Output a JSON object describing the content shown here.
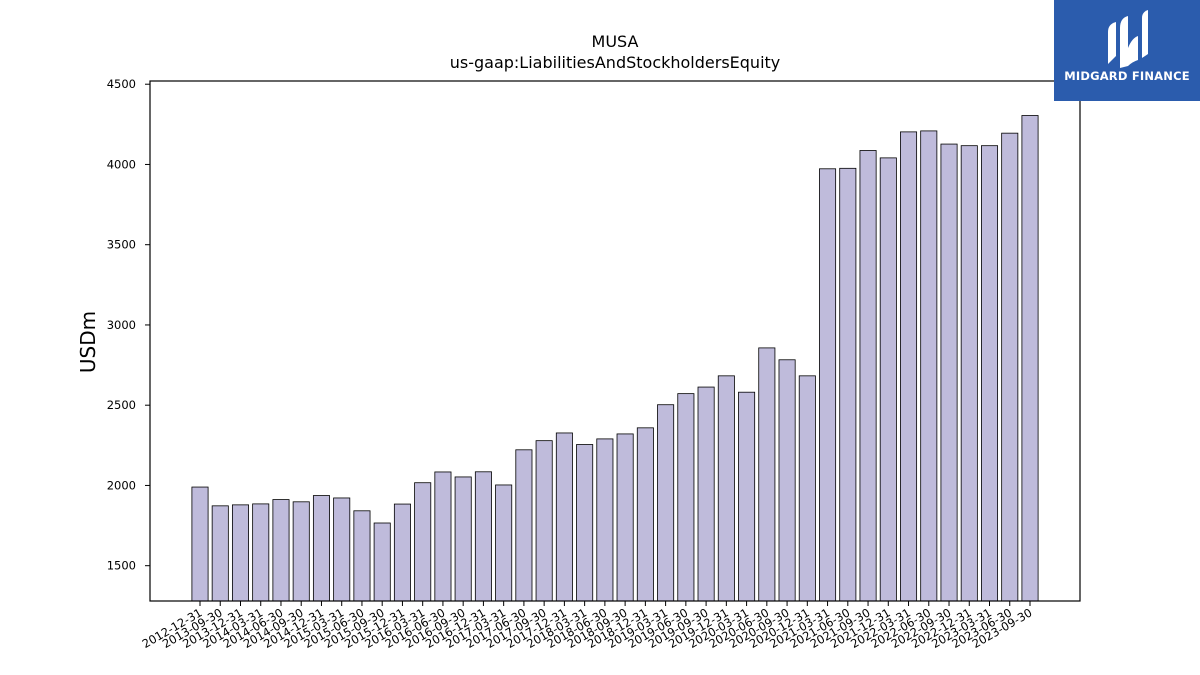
{
  "chart_data": {
    "type": "bar",
    "title": "MUSA",
    "subtitle": "us-gaap:LiabilitiesAndStockholdersEquity",
    "ylabel": "USDm",
    "xlabel": "",
    "ylim": [
      1280,
      4520
    ],
    "yticks": [
      1500,
      2000,
      2500,
      3000,
      3500,
      4000,
      4500
    ],
    "bar_color": "#bfbbdb",
    "bar_edge_color": "#000000",
    "categories": [
      "2012-12-31",
      "2013-09-30",
      "2013-12-31",
      "2014-03-31",
      "2014-06-30",
      "2014-09-30",
      "2014-12-31",
      "2015-03-31",
      "2015-06-30",
      "2015-09-30",
      "2015-12-31",
      "2016-03-31",
      "2016-06-30",
      "2016-09-30",
      "2016-12-31",
      "2017-03-31",
      "2017-06-30",
      "2017-09-30",
      "2017-12-31",
      "2018-03-31",
      "2018-06-30",
      "2018-09-30",
      "2018-12-31",
      "2019-03-31",
      "2019-06-30",
      "2019-09-30",
      "2019-12-31",
      "2020-03-31",
      "2020-06-30",
      "2020-09-30",
      "2020-12-31",
      "2021-03-31",
      "2021-06-30",
      "2021-09-30",
      "2021-12-31",
      "2022-03-31",
      "2022-06-30",
      "2022-09-30",
      "2022-12-31",
      "2023-03-31",
      "2023-06-30",
      "2023-09-30"
    ],
    "values": [
      1990,
      1873,
      1879,
      1885,
      1912,
      1898,
      1937,
      1922,
      1842,
      1766,
      1884,
      2017,
      2084,
      2053,
      2085,
      2003,
      2222,
      2279,
      2327,
      2255,
      2290,
      2321,
      2359,
      2503,
      2572,
      2613,
      2683,
      2581,
      2857,
      2783,
      2683,
      3973,
      3976,
      4087,
      4041,
      4203,
      4209,
      4127,
      4117,
      4117,
      4195,
      4305
    ]
  },
  "logo": {
    "text": "MIDGARD FINANCE",
    "icon": "midgard-logo-icon"
  }
}
